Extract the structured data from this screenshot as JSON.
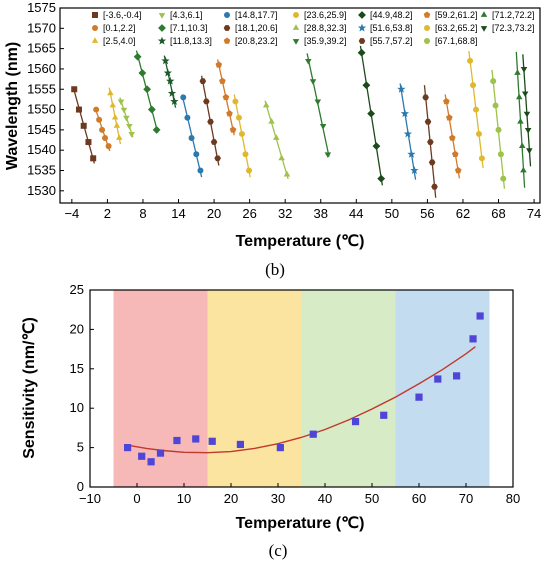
{
  "chart_data": [
    {
      "panel_label": "(b)",
      "type": "scatter",
      "xlabel": "Temperature (℃)",
      "ylabel": "Wavelength (nm)",
      "xlim": [
        -6,
        75
      ],
      "ylim": [
        1527,
        1575
      ],
      "xticks": [
        -4,
        2,
        8,
        14,
        20,
        26,
        32,
        38,
        44,
        50,
        56,
        62,
        68,
        74
      ],
      "yticks": [
        1530,
        1535,
        1540,
        1545,
        1550,
        1555,
        1560,
        1565,
        1570,
        1575
      ],
      "legend_position": "top",
      "series": [
        {
          "name": "[-3.6,-0.4]",
          "color": "#6b3a1f",
          "marker": "square",
          "x": [
            -3.6,
            -2.8,
            -2.0,
            -1.2,
            -0.4
          ],
          "y": [
            1555,
            1550,
            1546,
            1542,
            1538
          ]
        },
        {
          "name": "[0.1,2.2]",
          "color": "#d07a2a",
          "marker": "circle",
          "x": [
            0.1,
            0.6,
            1.1,
            1.6,
            2.2
          ],
          "y": [
            1550,
            1547.5,
            1545,
            1543,
            1541
          ]
        },
        {
          "name": "[2.5,4.0]",
          "color": "#e0b830",
          "marker": "triangle-up",
          "x": [
            2.5,
            2.9,
            3.3,
            3.6,
            4.0
          ],
          "y": [
            1554,
            1551,
            1548,
            1546,
            1543
          ]
        },
        {
          "name": "[4.3,6.1]",
          "color": "#9ec24a",
          "marker": "triangle-down",
          "x": [
            4.3,
            4.8,
            5.2,
            5.7,
            6.1
          ],
          "y": [
            1552,
            1550,
            1548,
            1546,
            1544
          ]
        },
        {
          "name": "[7.1,10.3]",
          "color": "#2e7a2e",
          "marker": "diamond",
          "x": [
            7.1,
            7.9,
            8.7,
            9.5,
            10.3
          ],
          "y": [
            1563,
            1559,
            1555,
            1550,
            1545
          ]
        },
        {
          "name": "[11.8,13.3]",
          "color": "#1c5a2a",
          "marker": "star",
          "x": [
            11.8,
            12.2,
            12.6,
            12.9,
            13.3
          ],
          "y": [
            1562,
            1559,
            1557,
            1554,
            1552
          ]
        },
        {
          "name": "[14.8,17.7]",
          "color": "#2a7ab0",
          "marker": "circle",
          "x": [
            14.8,
            15.5,
            16.2,
            17.0,
            17.7
          ],
          "y": [
            1553,
            1548,
            1543,
            1539,
            1535
          ]
        },
        {
          "name": "[18.1,20.6]",
          "color": "#6b3a1f",
          "marker": "hexagon",
          "x": [
            18.1,
            18.7,
            19.4,
            20.0,
            20.6
          ],
          "y": [
            1557,
            1552,
            1547,
            1542,
            1538
          ]
        },
        {
          "name": "[20.8,23.2]",
          "color": "#d07a2a",
          "marker": "pentagon",
          "x": [
            20.8,
            21.4,
            22.0,
            22.6,
            23.2
          ],
          "y": [
            1561,
            1557,
            1553,
            1549,
            1545
          ]
        },
        {
          "name": "[23.6,25.9]",
          "color": "#e0b830",
          "marker": "circle",
          "x": [
            23.6,
            24.2,
            24.7,
            25.3,
            25.9
          ],
          "y": [
            1552,
            1548,
            1544,
            1539,
            1535
          ]
        },
        {
          "name": "[28.8,32.3]",
          "color": "#9ec24a",
          "marker": "triangle-up",
          "x": [
            28.8,
            29.7,
            30.5,
            31.4,
            32.3
          ],
          "y": [
            1551,
            1547,
            1543,
            1538,
            1534
          ]
        },
        {
          "name": "[35.9,39.2]",
          "color": "#2e7a2e",
          "marker": "triangle-down",
          "x": [
            35.9,
            36.7,
            37.5,
            38.4,
            39.2
          ],
          "y": [
            1562,
            1557,
            1552,
            1546,
            1539
          ]
        },
        {
          "name": "[44.9,48.2]",
          "color": "#1c4a1c",
          "marker": "diamond",
          "x": [
            44.9,
            45.7,
            46.5,
            47.4,
            48.2
          ],
          "y": [
            1564,
            1556,
            1549,
            1541,
            1533
          ]
        },
        {
          "name": "[51.6,53.8]",
          "color": "#2a7ab0",
          "marker": "star",
          "x": [
            51.6,
            52.2,
            52.7,
            53.3,
            53.8
          ],
          "y": [
            1555,
            1549,
            1544,
            1539,
            1535
          ]
        },
        {
          "name": "[55.7,57.2]",
          "color": "#6b3a1f",
          "marker": "hexagon",
          "x": [
            55.7,
            56.1,
            56.5,
            56.8,
            57.2
          ],
          "y": [
            1553,
            1547,
            1542,
            1537,
            1531
          ]
        },
        {
          "name": "[59.2,61.2]",
          "color": "#d07a2a",
          "marker": "pentagon",
          "x": [
            59.2,
            59.7,
            60.2,
            60.7,
            61.2
          ],
          "y": [
            1552,
            1548,
            1543,
            1539,
            1535
          ]
        },
        {
          "name": "[63.2,65.2]",
          "color": "#e0b830",
          "marker": "circle",
          "x": [
            63.2,
            63.7,
            64.2,
            64.7,
            65.2
          ],
          "y": [
            1562,
            1556,
            1550,
            1544,
            1538
          ]
        },
        {
          "name": "[67.1,68.8]",
          "color": "#9ec24a",
          "marker": "circle",
          "x": [
            67.1,
            67.5,
            68.0,
            68.4,
            68.8
          ],
          "y": [
            1557,
            1551,
            1545,
            1539,
            1533
          ]
        },
        {
          "name": "[71.2,72.2]",
          "color": "#2e7a2e",
          "marker": "triangle-up",
          "x": [
            71.2,
            71.5,
            71.7,
            72.0,
            72.2
          ],
          "y": [
            1559,
            1553,
            1547,
            1541,
            1535
          ]
        },
        {
          "name": "[72.3,73.2]",
          "color": "#1c4a1c",
          "marker": "triangle-down",
          "x": [
            72.3,
            72.5,
            72.8,
            73.0,
            73.2
          ],
          "y": [
            1560,
            1554,
            1549,
            1545,
            1540
          ]
        }
      ]
    },
    {
      "panel_label": "(c)",
      "type": "scatter",
      "xlabel": "Temperature (℃)",
      "ylabel": "Sensitivity (nm/℃)",
      "xlim": [
        -10,
        80
      ],
      "ylim": [
        0,
        25
      ],
      "xticks": [
        -10,
        0,
        10,
        20,
        30,
        40,
        50,
        60,
        70,
        80
      ],
      "yticks": [
        0,
        5,
        10,
        15,
        20,
        25
      ],
      "bands": [
        {
          "x0": -5,
          "x1": 15,
          "color": "#f7b8b8"
        },
        {
          "x0": 15,
          "x1": 35,
          "color": "#fbe3a0"
        },
        {
          "x0": 35,
          "x1": 55,
          "color": "#d6ebc6"
        },
        {
          "x0": 55,
          "x1": 75,
          "color": "#c3dcf0"
        }
      ],
      "points": {
        "color": "#4f46d8",
        "marker": "square",
        "x": [
          -2,
          1,
          3,
          5,
          8.5,
          12.5,
          16,
          22,
          30.5,
          37.5,
          46.5,
          52.5,
          60,
          64,
          68,
          71.5,
          73
        ],
        "y": [
          5.0,
          3.9,
          3.2,
          4.3,
          5.9,
          6.1,
          5.8,
          5.4,
          5.0,
          6.7,
          8.3,
          9.1,
          11.4,
          13.7,
          14.1,
          18.8,
          21.7
        ]
      },
      "fit": {
        "color": "#c0392b",
        "x": [
          -2,
          2,
          6,
          10,
          15,
          20,
          25,
          30,
          35,
          40,
          45,
          50,
          55,
          60,
          65,
          70,
          72
        ],
        "y": [
          5.3,
          4.9,
          4.6,
          4.4,
          4.35,
          4.5,
          4.9,
          5.5,
          6.3,
          7.3,
          8.5,
          9.9,
          11.4,
          13.1,
          14.9,
          16.9,
          17.8
        ]
      }
    }
  ]
}
